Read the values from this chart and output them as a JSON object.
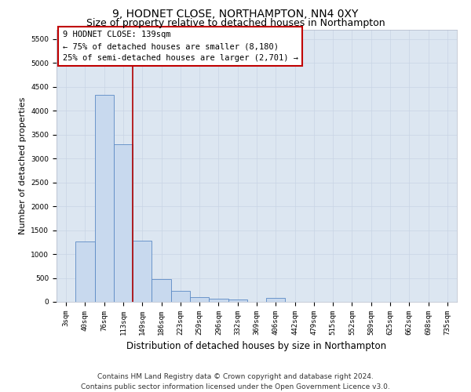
{
  "title": "9, HODNET CLOSE, NORTHAMPTON, NN4 0XY",
  "subtitle": "Size of property relative to detached houses in Northampton",
  "xlabel": "Distribution of detached houses by size in Northampton",
  "ylabel": "Number of detached properties",
  "categories": [
    "3sqm",
    "40sqm",
    "76sqm",
    "113sqm",
    "149sqm",
    "186sqm",
    "223sqm",
    "259sqm",
    "296sqm",
    "332sqm",
    "369sqm",
    "406sqm",
    "442sqm",
    "479sqm",
    "515sqm",
    "552sqm",
    "589sqm",
    "625sqm",
    "662sqm",
    "698sqm",
    "735sqm"
  ],
  "values": [
    0,
    1270,
    4330,
    3290,
    1280,
    480,
    230,
    100,
    65,
    50,
    0,
    80,
    0,
    0,
    0,
    0,
    0,
    0,
    0,
    0,
    0
  ],
  "bar_color": "#c8d9ee",
  "bar_edge_color": "#5b8ac5",
  "bar_linewidth": 0.6,
  "vline_pos": 3.5,
  "vline_color": "#b00000",
  "vline_linewidth": 1.2,
  "annotation_text_line1": "9 HODNET CLOSE: 139sqm",
  "annotation_text_line2": "← 75% of detached houses are smaller (8,180)",
  "annotation_text_line3": "25% of semi-detached houses are larger (2,701) →",
  "ylim": [
    0,
    5700
  ],
  "yticks": [
    0,
    500,
    1000,
    1500,
    2000,
    2500,
    3000,
    3500,
    4000,
    4500,
    5000,
    5500
  ],
  "grid_color": "#c8d4e5",
  "plot_bg_color": "#dce6f1",
  "footer_line1": "Contains HM Land Registry data © Crown copyright and database right 2024.",
  "footer_line2": "Contains public sector information licensed under the Open Government Licence v3.0.",
  "title_fontsize": 10,
  "subtitle_fontsize": 9,
  "xlabel_fontsize": 8.5,
  "ylabel_fontsize": 8,
  "tick_fontsize": 6.5,
  "footer_fontsize": 6.5,
  "annot_fontsize": 7.5
}
